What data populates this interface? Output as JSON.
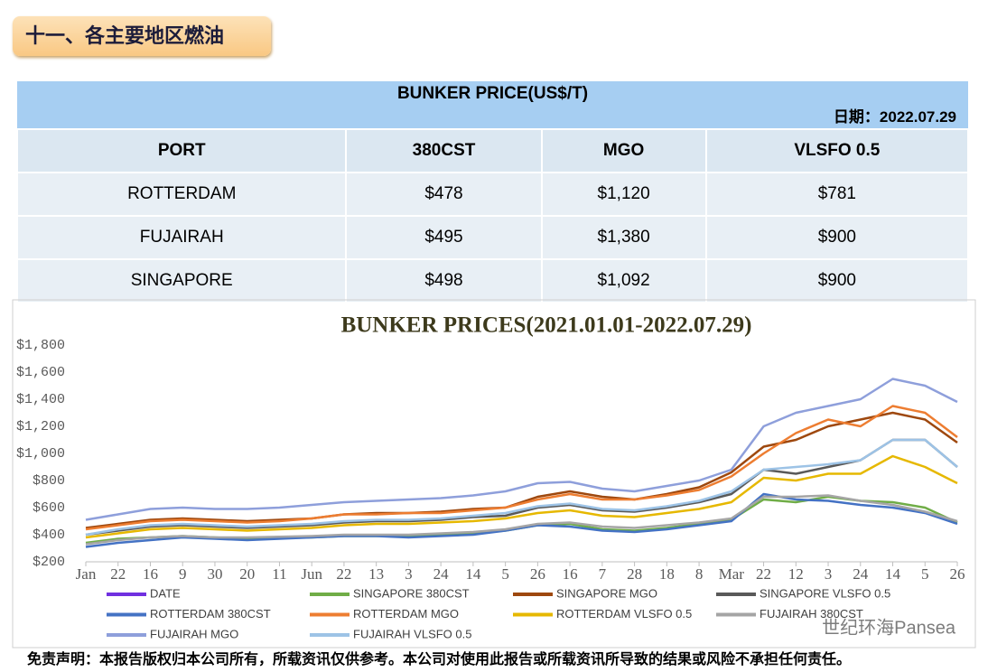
{
  "header": {
    "title": "十一、各主要地区燃油"
  },
  "table": {
    "title": "BUNKER PRICE(US$/T)",
    "date": "日期：2022.07.29",
    "columns": [
      "PORT",
      "380CST",
      "MGO",
      "VLSFO 0.5"
    ],
    "rows": [
      [
        "ROTTERDAM",
        "$478",
        "$1,120",
        "$781"
      ],
      [
        "FUJAIRAH",
        "$495",
        "$1,380",
        "$900"
      ],
      [
        "SINGAPORE",
        "$498",
        "$1,092",
        "$900"
      ]
    ]
  },
  "chart_data": {
    "type": "line",
    "title": "BUNKER PRICES(2021.01.01-2022.07.29)",
    "categories": [
      "Jan",
      "22",
      "16",
      "9",
      "30",
      "20",
      "11",
      "Jun",
      "22",
      "13",
      "3",
      "24",
      "14",
      "5",
      "26",
      "16",
      "7",
      "28",
      "18",
      "8",
      "Mar",
      "22",
      "12",
      "3",
      "24",
      "14",
      "5",
      "26"
    ],
    "ylim": [
      200,
      1800
    ],
    "yticks": [
      {
        "value": 200,
        "label": "$200"
      },
      {
        "value": 400,
        "label": "$400"
      },
      {
        "value": 600,
        "label": "$600"
      },
      {
        "value": 800,
        "label": "$800"
      },
      {
        "value": 1000,
        "label": "$1,000"
      },
      {
        "value": 1200,
        "label": "$1,200"
      },
      {
        "value": 1400,
        "label": "$1,400"
      },
      {
        "value": 1600,
        "label": "$1,600"
      },
      {
        "value": 1800,
        "label": "$1,800"
      }
    ],
    "grid": false,
    "series": [
      {
        "name": "DATE",
        "color": "#7030e0",
        "values": [
          null,
          null,
          null,
          null,
          null,
          null,
          null,
          null,
          null,
          null,
          null,
          null,
          null,
          null,
          null,
          null,
          null,
          null,
          null,
          null,
          null,
          null,
          null,
          null,
          null,
          null,
          null,
          null
        ]
      },
      {
        "name": "SINGAPORE 380CST",
        "color": "#70ad47",
        "values": [
          340,
          370,
          380,
          390,
          380,
          370,
          375,
          380,
          390,
          390,
          395,
          400,
          410,
          430,
          470,
          480,
          440,
          430,
          450,
          480,
          510,
          660,
          640,
          680,
          650,
          640,
          600,
          490
        ]
      },
      {
        "name": "SINGAPORE MGO",
        "color": "#9e480e",
        "values": [
          450,
          480,
          510,
          520,
          510,
          500,
          510,
          520,
          550,
          560,
          560,
          570,
          590,
          600,
          680,
          720,
          680,
          660,
          700,
          750,
          860,
          1050,
          1100,
          1200,
          1250,
          1300,
          1250,
          1080
        ]
      },
      {
        "name": "SINGAPORE VLSFO 0.5",
        "color": "#595959",
        "values": [
          400,
          430,
          460,
          470,
          460,
          450,
          460,
          470,
          490,
          500,
          500,
          510,
          530,
          540,
          600,
          620,
          580,
          570,
          600,
          640,
          700,
          880,
          850,
          900,
          950,
          1100,
          1100,
          900
        ]
      },
      {
        "name": "ROTTERDAM 380CST",
        "color": "#4472c4",
        "values": [
          310,
          340,
          360,
          380,
          370,
          360,
          370,
          380,
          390,
          390,
          380,
          390,
          400,
          430,
          470,
          460,
          430,
          420,
          440,
          470,
          500,
          700,
          660,
          650,
          620,
          600,
          560,
          480
        ]
      },
      {
        "name": "ROTTERDAM MGO",
        "color": "#ed7d31",
        "values": [
          440,
          470,
          500,
          510,
          500,
          490,
          500,
          520,
          550,
          550,
          560,
          560,
          580,
          600,
          660,
          700,
          660,
          660,
          690,
          730,
          830,
          1000,
          1150,
          1250,
          1200,
          1350,
          1300,
          1120
        ]
      },
      {
        "name": "ROTTERDAM VLSFO 0.5",
        "color": "#e6b800",
        "values": [
          380,
          410,
          440,
          450,
          440,
          430,
          440,
          450,
          470,
          480,
          480,
          490,
          500,
          520,
          560,
          580,
          540,
          530,
          560,
          590,
          640,
          820,
          800,
          850,
          850,
          980,
          900,
          780
        ]
      },
      {
        "name": "FUJAIRAH 380CST",
        "color": "#a5a5a5",
        "values": [
          330,
          360,
          380,
          390,
          380,
          380,
          385,
          390,
          400,
          400,
          400,
          410,
          420,
          440,
          480,
          490,
          460,
          450,
          470,
          490,
          520,
          680,
          680,
          690,
          650,
          620,
          570,
          500
        ]
      },
      {
        "name": "FUJAIRAH MGO",
        "color": "#8e9fdb",
        "values": [
          510,
          550,
          590,
          600,
          590,
          590,
          600,
          620,
          640,
          650,
          660,
          670,
          690,
          720,
          780,
          790,
          740,
          720,
          760,
          800,
          880,
          1200,
          1300,
          1350,
          1400,
          1550,
          1500,
          1380
        ]
      },
      {
        "name": "FUJAIRAH VLSFO 0.5",
        "color": "#9dc3e6",
        "values": [
          400,
          440,
          470,
          480,
          470,
          460,
          470,
          480,
          500,
          510,
          510,
          520,
          540,
          560,
          610,
          630,
          590,
          580,
          610,
          650,
          720,
          880,
          900,
          920,
          950,
          1100,
          1100,
          900
        ]
      }
    ]
  },
  "footer": {
    "disclaimer": "免责声明：本报告版权归本公司所有，所载资讯仅供参考。本公司对使用此报告或所载资讯所导致的结果或风险不承担任何责任。",
    "watermark": "世纪环海Pansea"
  }
}
